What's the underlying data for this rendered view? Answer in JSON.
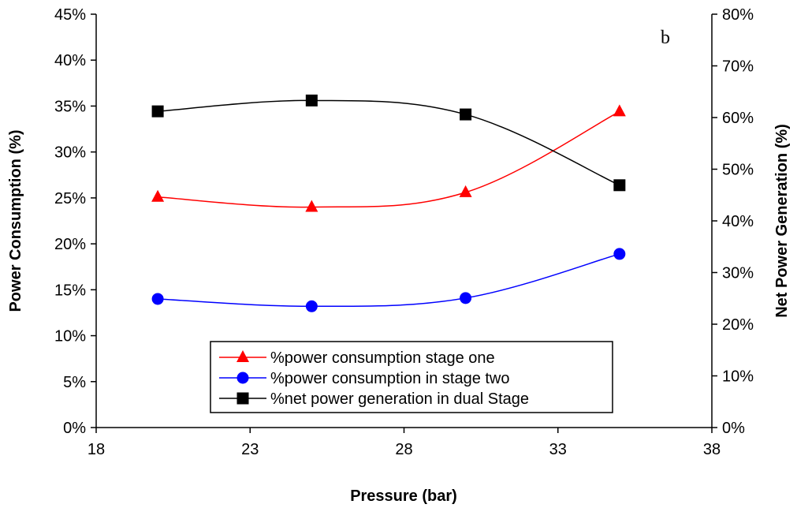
{
  "chart_data": {
    "type": "line",
    "annotation": "b",
    "xlabel": "Pressure (bar)",
    "ylabel_left": "Power Consumption (%)",
    "ylabel_right": "Net Power Generation (%)",
    "xlim": [
      18,
      38
    ],
    "xticks": [
      18,
      23,
      28,
      33,
      38
    ],
    "ylim_left": [
      0,
      45
    ],
    "yticks_left": [
      "0%",
      "5%",
      "10%",
      "15%",
      "20%",
      "25%",
      "30%",
      "35%",
      "40%",
      "45%"
    ],
    "ylim_right": [
      0,
      80
    ],
    "yticks_right": [
      "0%",
      "10%",
      "20%",
      "30%",
      "40%",
      "50%",
      "60%",
      "70%",
      "80%"
    ],
    "legend_position": "bottom-center",
    "x": [
      20,
      25,
      30,
      35
    ],
    "series": [
      {
        "name": "%power consumption stage one",
        "axis": "left",
        "marker": "triangle",
        "color": "#ff0000",
        "values": [
          25.1,
          24.0,
          25.6,
          34.4
        ]
      },
      {
        "name": "%power consumption in stage two",
        "axis": "left",
        "marker": "circle",
        "color": "#0000ff",
        "values": [
          14.0,
          13.2,
          14.1,
          18.9
        ]
      },
      {
        "name": "%net power generation in dual Stage",
        "axis": "right",
        "marker": "square",
        "color": "#000000",
        "values": [
          61.2,
          63.3,
          60.6,
          46.9
        ]
      }
    ]
  }
}
